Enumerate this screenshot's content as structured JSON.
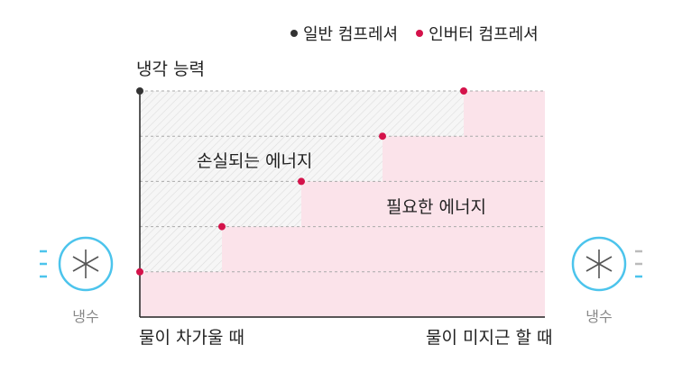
{
  "legend": {
    "general": {
      "label": "일반 컴프레셔",
      "color": "#333333"
    },
    "inverter": {
      "label": "인버터 컴프레셔",
      "color": "#d4124a"
    }
  },
  "axis": {
    "y_title": "냉각 능력",
    "x_start": "물이 차가울 때",
    "x_end": "물이 미지근 할 때"
  },
  "regions": {
    "lost_energy": "손실되는 에너지",
    "needed_energy": "필요한 에너지"
  },
  "cooling": {
    "left_label": "냉수",
    "right_label": "냉수",
    "icon": "snowflake-icon",
    "ring_color": "#4cc4ec"
  },
  "chart_data": {
    "type": "area",
    "series": [
      {
        "name": "일반 컴프레셔",
        "points": [
          [
            0,
            5
          ]
        ]
      },
      {
        "name": "인버터 컴프레셔",
        "points": [
          [
            0,
            1
          ],
          [
            1,
            2
          ],
          [
            2,
            3
          ],
          [
            3,
            4
          ],
          [
            4,
            5
          ]
        ]
      }
    ],
    "ylim": [
      0,
      5
    ],
    "grid": true
  }
}
